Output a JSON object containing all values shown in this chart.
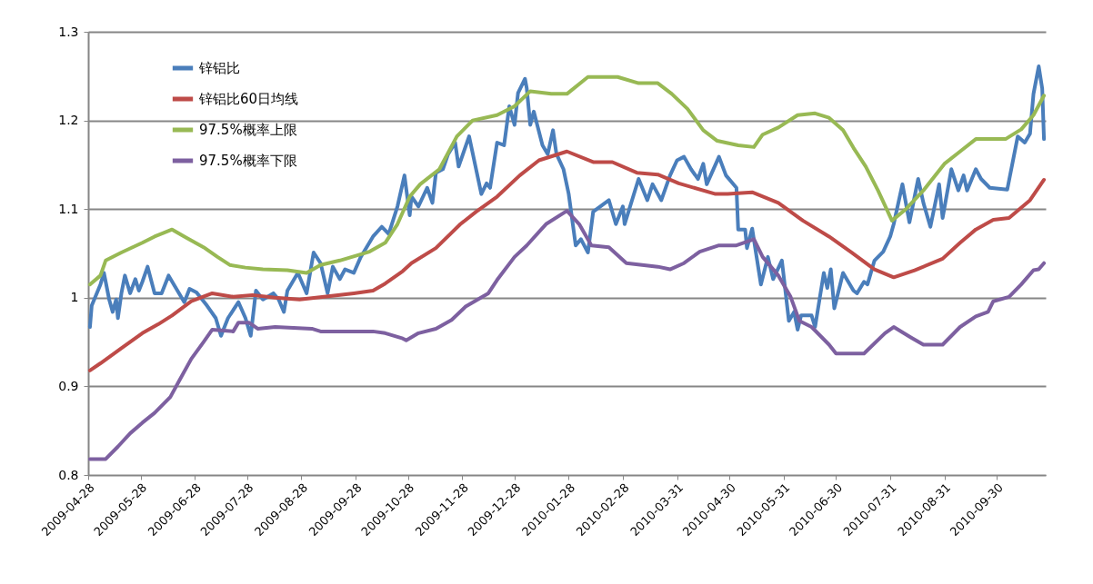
{
  "chart_data": {
    "type": "line",
    "legend": "top left",
    "grid": "y",
    "line_style": "solid",
    "marker": "none",
    "xlim": [
      "2009-04-28",
      "2010-10-28"
    ],
    "xticks": [
      {
        "value": "2009-04-28",
        "label": "2009-04-28"
      },
      {
        "value": "2009-05-28",
        "label": "2009-05-28"
      },
      {
        "value": "2009-06-28",
        "label": "2009-06-28"
      },
      {
        "value": "2009-07-28",
        "label": "2009-07-28"
      },
      {
        "value": "2009-08-28",
        "label": "2009-08-28"
      },
      {
        "value": "2009-09-28",
        "label": "2009-09-28"
      },
      {
        "value": "2009-10-28",
        "label": "2009-10-28"
      },
      {
        "value": "2009-11-28",
        "label": "2009-11-28"
      },
      {
        "value": "2009-12-28",
        "label": "2009-12-28"
      },
      {
        "value": "2010-01-28",
        "label": "2010-01-28"
      },
      {
        "value": "2010-02-28",
        "label": "2010-02-28"
      },
      {
        "value": "2010-03-31",
        "label": "2010-03-31"
      },
      {
        "value": "2010-04-30",
        "label": "2010-04-30"
      },
      {
        "value": "2010-05-31",
        "label": "2010-05-31"
      },
      {
        "value": "2010-06-30",
        "label": "2010-06-30"
      },
      {
        "value": "2010-07-31",
        "label": "2010-07-31"
      },
      {
        "value": "2010-08-31",
        "label": "2010-08-31"
      },
      {
        "value": "2010-09-30",
        "label": "2010-09-30"
      }
    ],
    "ylim": [
      0.8,
      1.3
    ],
    "yticks": [
      0.8,
      0.9,
      1,
      1.1,
      1.2,
      1.3
    ],
    "series": [
      {
        "name": "锌铝比",
        "color": "#4a7ebb",
        "x": [
          "2009-04-29",
          "2009-04-30",
          "2009-05-05",
          "2009-05-07",
          "2009-05-10",
          "2009-05-12",
          "2009-05-14",
          "2009-05-15",
          "2009-05-17",
          "2009-05-19",
          "2009-05-22",
          "2009-05-25",
          "2009-05-27",
          "2009-05-29",
          "2009-06-01",
          "2009-06-05",
          "2009-06-09",
          "2009-06-13",
          "2009-06-19",
          "2009-06-22",
          "2009-06-25",
          "2009-06-29",
          "2009-07-05",
          "2009-07-10",
          "2009-07-13",
          "2009-07-17",
          "2009-07-23",
          "2009-07-27",
          "2009-07-30",
          "2009-08-02",
          "2009-08-06",
          "2009-08-12",
          "2009-08-15",
          "2009-08-18",
          "2009-08-20",
          "2009-08-26",
          "2009-08-31",
          "2009-09-04",
          "2009-09-08",
          "2009-09-12",
          "2009-09-15",
          "2009-09-19",
          "2009-09-22",
          "2009-09-27",
          "2009-10-01",
          "2009-10-08",
          "2009-10-13",
          "2009-10-17",
          "2009-10-22",
          "2009-10-26",
          "2009-10-29",
          "2009-10-30",
          "2009-11-03",
          "2009-11-08",
          "2009-11-11",
          "2009-11-13",
          "2009-11-17",
          "2009-11-20",
          "2009-11-24",
          "2009-11-26",
          "2009-12-02",
          "2009-12-09",
          "2009-12-12",
          "2009-12-14",
          "2009-12-18",
          "2009-12-22",
          "2009-12-25",
          "2009-12-28",
          "2009-12-30",
          "2010-01-03",
          "2010-01-04",
          "2010-01-06",
          "2010-01-08",
          "2010-01-13",
          "2010-01-16",
          "2010-01-19",
          "2010-01-21",
          "2010-01-25",
          "2010-01-28",
          "2010-02-01",
          "2010-02-04",
          "2010-02-08",
          "2010-02-11",
          "2010-02-20",
          "2010-02-24",
          "2010-02-28",
          "2010-03-01",
          "2010-03-09",
          "2010-03-14",
          "2010-03-17",
          "2010-03-22",
          "2010-03-27",
          "2010-03-31",
          "2010-04-04",
          "2010-04-08",
          "2010-04-12",
          "2010-04-15",
          "2010-04-17",
          "2010-04-24",
          "2010-04-28",
          "2010-05-04",
          "2010-05-05",
          "2010-05-09",
          "2010-05-10",
          "2010-05-13",
          "2010-05-18",
          "2010-05-22",
          "2010-05-25",
          "2010-05-30",
          "2010-06-03",
          "2010-06-06",
          "2010-06-08",
          "2010-06-10",
          "2010-06-16",
          "2010-06-18",
          "2010-06-23",
          "2010-06-25",
          "2010-06-27",
          "2010-06-29",
          "2010-07-04",
          "2010-07-10",
          "2010-07-12",
          "2010-07-16",
          "2010-07-18",
          "2010-07-22",
          "2010-07-27",
          "2010-07-31",
          "2010-08-02",
          "2010-08-07",
          "2010-08-11",
          "2010-08-16",
          "2010-08-19",
          "2010-08-23",
          "2010-08-28",
          "2010-08-30",
          "2010-09-04",
          "2010-09-08",
          "2010-09-11",
          "2010-09-13",
          "2010-09-18",
          "2010-09-21",
          "2010-09-26",
          "2010-10-06",
          "2010-10-12",
          "2010-10-16",
          "2010-10-19",
          "2010-10-21",
          "2010-10-24",
          "2010-10-26",
          "2010-10-27"
        ],
        "values": [
          0.967,
          0.991,
          1.015,
          1.028,
          0.998,
          0.984,
          0.998,
          0.977,
          1.005,
          1.025,
          1.005,
          1.021,
          1.008,
          1.018,
          1.035,
          1.005,
          1.005,
          1.025,
          1.005,
          0.995,
          1.01,
          1.006,
          0.991,
          0.977,
          0.957,
          0.977,
          0.995,
          0.977,
          0.957,
          1.008,
          0.998,
          1.005,
          0.998,
          0.984,
          1.008,
          1.028,
          1.005,
          1.051,
          1.039,
          1.005,
          1.035,
          1.021,
          1.032,
          1.028,
          1.046,
          1.069,
          1.08,
          1.072,
          1.103,
          1.138,
          1.093,
          1.114,
          1.103,
          1.124,
          1.107,
          1.141,
          1.145,
          1.162,
          1.175,
          1.148,
          1.182,
          1.117,
          1.129,
          1.124,
          1.175,
          1.172,
          1.216,
          1.195,
          1.231,
          1.247,
          1.236,
          1.195,
          1.21,
          1.172,
          1.162,
          1.189,
          1.162,
          1.145,
          1.117,
          1.059,
          1.066,
          1.051,
          1.097,
          1.11,
          1.083,
          1.103,
          1.083,
          1.134,
          1.11,
          1.128,
          1.11,
          1.138,
          1.155,
          1.159,
          1.145,
          1.134,
          1.151,
          1.128,
          1.159,
          1.138,
          1.124,
          1.077,
          1.077,
          1.056,
          1.078,
          1.015,
          1.046,
          1.021,
          1.042,
          0.974,
          0.984,
          0.964,
          0.98,
          0.98,
          0.967,
          1.028,
          1.011,
          1.032,
          0.988,
          1.028,
          1.008,
          1.005,
          1.018,
          1.015,
          1.042,
          1.052,
          1.069,
          1.083,
          1.128,
          1.085,
          1.134,
          1.107,
          1.08,
          1.128,
          1.09,
          1.145,
          1.121,
          1.138,
          1.121,
          1.145,
          1.134,
          1.124,
          1.122,
          1.182,
          1.175,
          1.185,
          1.23,
          1.261,
          1.236,
          1.179
        ]
      },
      {
        "name": "锌铝比60日均线",
        "color": "#be4b48",
        "x": [
          "2009-04-29",
          "2009-05-05",
          "2009-05-17",
          "2009-05-29",
          "2009-06-07",
          "2009-06-15",
          "2009-06-26",
          "2009-07-08",
          "2009-07-20",
          "2009-07-31",
          "2009-08-13",
          "2009-08-27",
          "2009-09-10",
          "2009-09-27",
          "2009-10-08",
          "2009-10-15",
          "2009-10-25",
          "2009-10-30",
          "2009-11-13",
          "2009-11-27",
          "2009-12-06",
          "2009-12-18",
          "2009-12-31",
          "2010-01-11",
          "2010-01-27",
          "2010-02-11",
          "2010-02-22",
          "2010-03-08",
          "2010-03-20",
          "2010-04-01",
          "2010-04-22",
          "2010-04-29",
          "2010-05-13",
          "2010-05-28",
          "2010-06-11",
          "2010-06-26",
          "2010-07-09",
          "2010-07-22",
          "2010-08-02",
          "2010-08-14",
          "2010-08-30",
          "2010-09-09",
          "2010-09-18",
          "2010-09-28",
          "2010-10-07",
          "2010-10-19",
          "2010-10-27"
        ],
        "values": [
          0.918,
          0.926,
          0.943,
          0.96,
          0.97,
          0.98,
          0.996,
          1.005,
          1.001,
          1.003,
          1.0,
          0.998,
          1.001,
          1.005,
          1.008,
          1.016,
          1.03,
          1.039,
          1.056,
          1.083,
          1.097,
          1.114,
          1.138,
          1.155,
          1.165,
          1.153,
          1.153,
          1.141,
          1.139,
          1.129,
          1.117,
          1.117,
          1.119,
          1.107,
          1.087,
          1.069,
          1.051,
          1.032,
          1.023,
          1.031,
          1.044,
          1.062,
          1.077,
          1.088,
          1.09,
          1.11,
          1.133
        ]
      },
      {
        "name": "97.5%概率上限",
        "color": "#98b954",
        "x": [
          "2009-04-29",
          "2009-05-05",
          "2009-05-08",
          "2009-05-17",
          "2009-05-29",
          "2009-06-05",
          "2009-06-15",
          "2009-06-22",
          "2009-07-03",
          "2009-07-11",
          "2009-07-18",
          "2009-07-27",
          "2009-08-06",
          "2009-08-20",
          "2009-08-31",
          "2009-09-08",
          "2009-09-19",
          "2009-10-06",
          "2009-10-15",
          "2009-10-22",
          "2009-10-29",
          "2009-11-04",
          "2009-11-15",
          "2009-11-25",
          "2009-12-04",
          "2009-12-18",
          "2009-12-28",
          "2010-01-06",
          "2010-01-18",
          "2010-01-27",
          "2010-02-08",
          "2010-02-25",
          "2010-03-09",
          "2010-03-20",
          "2010-03-28",
          "2010-04-06",
          "2010-04-15",
          "2010-04-23",
          "2010-05-05",
          "2010-05-14",
          "2010-05-19",
          "2010-05-28",
          "2010-06-08",
          "2010-06-18",
          "2010-06-26",
          "2010-07-04",
          "2010-07-10",
          "2010-07-17",
          "2010-07-24",
          "2010-08-01",
          "2010-08-09",
          "2010-08-19",
          "2010-08-31",
          "2010-09-09",
          "2010-09-18",
          "2010-10-05",
          "2010-10-14",
          "2010-10-21",
          "2010-10-27"
        ],
        "values": [
          1.015,
          1.025,
          1.042,
          1.051,
          1.062,
          1.069,
          1.077,
          1.069,
          1.057,
          1.046,
          1.037,
          1.034,
          1.032,
          1.031,
          1.028,
          1.037,
          1.042,
          1.052,
          1.062,
          1.083,
          1.114,
          1.128,
          1.145,
          1.182,
          1.2,
          1.206,
          1.216,
          1.233,
          1.23,
          1.23,
          1.249,
          1.249,
          1.242,
          1.242,
          1.23,
          1.213,
          1.189,
          1.177,
          1.172,
          1.17,
          1.184,
          1.192,
          1.206,
          1.208,
          1.203,
          1.189,
          1.169,
          1.148,
          1.121,
          1.087,
          1.1,
          1.121,
          1.151,
          1.165,
          1.179,
          1.179,
          1.19,
          1.206,
          1.228
        ]
      },
      {
        "name": "97.5%概率下限",
        "color": "#7d60a0",
        "x": [
          "2009-04-29",
          "2009-05-08",
          "2009-05-15",
          "2009-05-22",
          "2009-05-29",
          "2009-06-05",
          "2009-06-14",
          "2009-06-19",
          "2009-06-26",
          "2009-07-03",
          "2009-07-08",
          "2009-07-20",
          "2009-07-23",
          "2009-07-29",
          "2009-08-03",
          "2009-08-13",
          "2009-09-03",
          "2009-09-08",
          "2009-10-08",
          "2009-10-15",
          "2009-10-25",
          "2009-10-27",
          "2009-11-03",
          "2009-11-13",
          "2009-11-22",
          "2009-11-30",
          "2009-12-13",
          "2009-12-18",
          "2009-12-28",
          "2010-01-04",
          "2010-01-15",
          "2010-01-27",
          "2010-02-03",
          "2010-02-10",
          "2010-02-20",
          "2010-03-02",
          "2010-03-20",
          "2010-03-27",
          "2010-04-04",
          "2010-04-13",
          "2010-04-24",
          "2010-05-04",
          "2010-05-14",
          "2010-05-19",
          "2010-05-28",
          "2010-06-04",
          "2010-06-09",
          "2010-06-16",
          "2010-06-26",
          "2010-06-30",
          "2010-07-16",
          "2010-07-28",
          "2010-08-02",
          "2010-08-12",
          "2010-08-19",
          "2010-08-30",
          "2010-09-09",
          "2010-09-18",
          "2010-09-25",
          "2010-09-28",
          "2010-10-07",
          "2010-10-14",
          "2010-10-21",
          "2010-10-24",
          "2010-10-27"
        ],
        "values": [
          0.818,
          0.818,
          0.832,
          0.847,
          0.859,
          0.87,
          0.888,
          0.906,
          0.931,
          0.95,
          0.964,
          0.962,
          0.972,
          0.972,
          0.965,
          0.967,
          0.965,
          0.962,
          0.962,
          0.96,
          0.954,
          0.952,
          0.96,
          0.965,
          0.975,
          0.99,
          1.005,
          1.02,
          1.046,
          1.059,
          1.083,
          1.098,
          1.083,
          1.059,
          1.057,
          1.039,
          1.035,
          1.032,
          1.039,
          1.052,
          1.059,
          1.059,
          1.066,
          1.046,
          1.025,
          1.001,
          0.974,
          0.967,
          0.947,
          0.937,
          0.937,
          0.96,
          0.967,
          0.955,
          0.947,
          0.947,
          0.967,
          0.979,
          0.984,
          0.996,
          1.001,
          1.015,
          1.031,
          1.032,
          1.039
        ]
      }
    ]
  }
}
